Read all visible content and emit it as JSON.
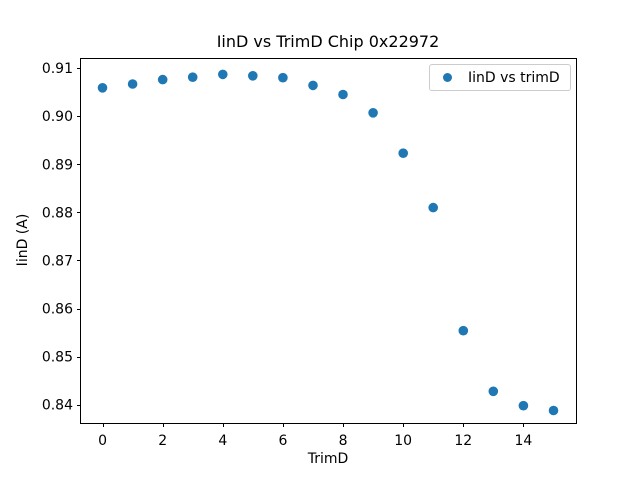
{
  "chart_data": {
    "type": "scatter",
    "title": "IinD vs TrimD Chip 0x22972",
    "xlabel": "TrimD",
    "ylabel": "IinD (A)",
    "legend": {
      "label": "IinD vs trimD",
      "position": "upper right"
    },
    "marker_color": "#1f77b4",
    "grid": false,
    "x": [
      0,
      1,
      2,
      3,
      4,
      5,
      6,
      7,
      8,
      9,
      10,
      11,
      12,
      13,
      14,
      15
    ],
    "y": [
      0.9059,
      0.9067,
      0.9076,
      0.9081,
      0.9087,
      0.9084,
      0.908,
      0.9064,
      0.9045,
      0.9007,
      0.8923,
      0.881,
      0.8554,
      0.8428,
      0.8398,
      0.8388
    ],
    "xlim": [
      -0.75,
      15.75
    ],
    "ylim": [
      0.8362,
      0.9121
    ],
    "xticks": {
      "values": [
        0,
        2,
        4,
        6,
        8,
        10,
        12,
        14
      ],
      "labels": [
        "0",
        "2",
        "4",
        "6",
        "8",
        "10",
        "12",
        "14"
      ]
    },
    "yticks": {
      "values": [
        0.84,
        0.85,
        0.86,
        0.87,
        0.88,
        0.89,
        0.9,
        0.91
      ],
      "labels": [
        "0.84",
        "0.85",
        "0.86",
        "0.87",
        "0.88",
        "0.89",
        "0.90",
        "0.91"
      ]
    }
  }
}
